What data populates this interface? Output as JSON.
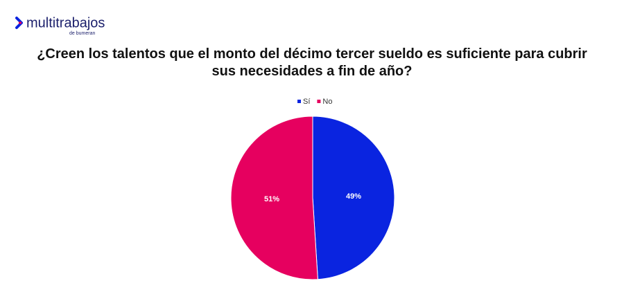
{
  "brand": {
    "name": "multitrabajos",
    "tagline": "de bumeran"
  },
  "chart_data": {
    "type": "pie",
    "title": "¿Creen los talentos que el monto del décimo tercer sueldo es suficiente para cubrir sus necesidades a fin de año?",
    "categories": [
      "Sí",
      "No"
    ],
    "values": [
      49,
      51
    ],
    "value_labels": [
      "49%",
      "51%"
    ],
    "colors": [
      "#0a24e0",
      "#e6005f"
    ],
    "legend": "top"
  }
}
